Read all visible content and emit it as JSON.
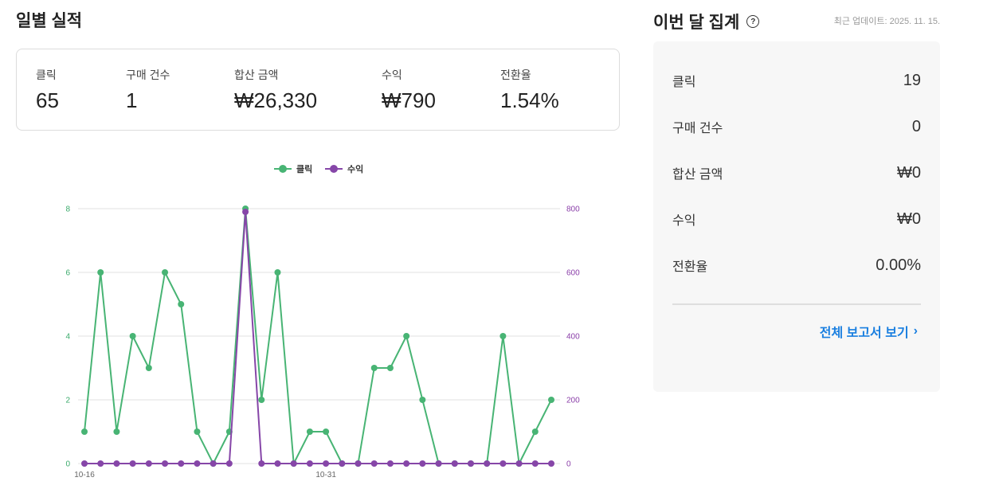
{
  "daily": {
    "title": "일별 실적",
    "metrics": [
      {
        "label": "클릭",
        "value": "65"
      },
      {
        "label": "구매 건수",
        "value": "1"
      },
      {
        "label": "합산 금액",
        "value": "₩26,330"
      },
      {
        "label": "수익",
        "value": "₩790"
      },
      {
        "label": "전환율",
        "value": "1.54%"
      }
    ]
  },
  "monthly": {
    "title": "이번 달 집계",
    "help_icon": "question-circle-icon",
    "updated": "최근 업데이트: 2025. 11. 15.",
    "rows": [
      {
        "label": "클릭",
        "value": "19"
      },
      {
        "label": "구매 건수",
        "value": "0"
      },
      {
        "label": "합산 금액",
        "value": "₩0"
      },
      {
        "label": "수익",
        "value": "₩0"
      },
      {
        "label": "전환율",
        "value": "0.00%"
      }
    ],
    "link_label": "전체 보고서 보기",
    "link_icon": "chevron-right-icon"
  },
  "chart_data": {
    "type": "line",
    "x_tick_labels": [
      "10-16",
      "10-31"
    ],
    "x_tick_index": [
      0,
      15
    ],
    "legend_position": "top-center",
    "grid": true,
    "y_left": {
      "range": [
        0,
        8
      ],
      "ticks": [
        0,
        2,
        4,
        6,
        8
      ],
      "color": "#3aaa6b"
    },
    "y_right": {
      "range": [
        0,
        800
      ],
      "ticks": [
        0,
        200,
        400,
        600,
        800
      ],
      "color": "#8a3ea8"
    },
    "series": [
      {
        "name": "클릭",
        "axis": "left",
        "color": "#48b474",
        "values": [
          1,
          6,
          1,
          4,
          3,
          6,
          5,
          1,
          0,
          1,
          8,
          2,
          6,
          0,
          1,
          1,
          0,
          0,
          3,
          3,
          4,
          2,
          0,
          0,
          0,
          0,
          4,
          0,
          1,
          2
        ]
      },
      {
        "name": "수익",
        "axis": "right",
        "color": "#8646a8",
        "values": [
          0,
          0,
          0,
          0,
          0,
          0,
          0,
          0,
          0,
          0,
          790,
          0,
          0,
          0,
          0,
          0,
          0,
          0,
          0,
          0,
          0,
          0,
          0,
          0,
          0,
          0,
          0,
          0,
          0,
          0
        ]
      }
    ]
  }
}
